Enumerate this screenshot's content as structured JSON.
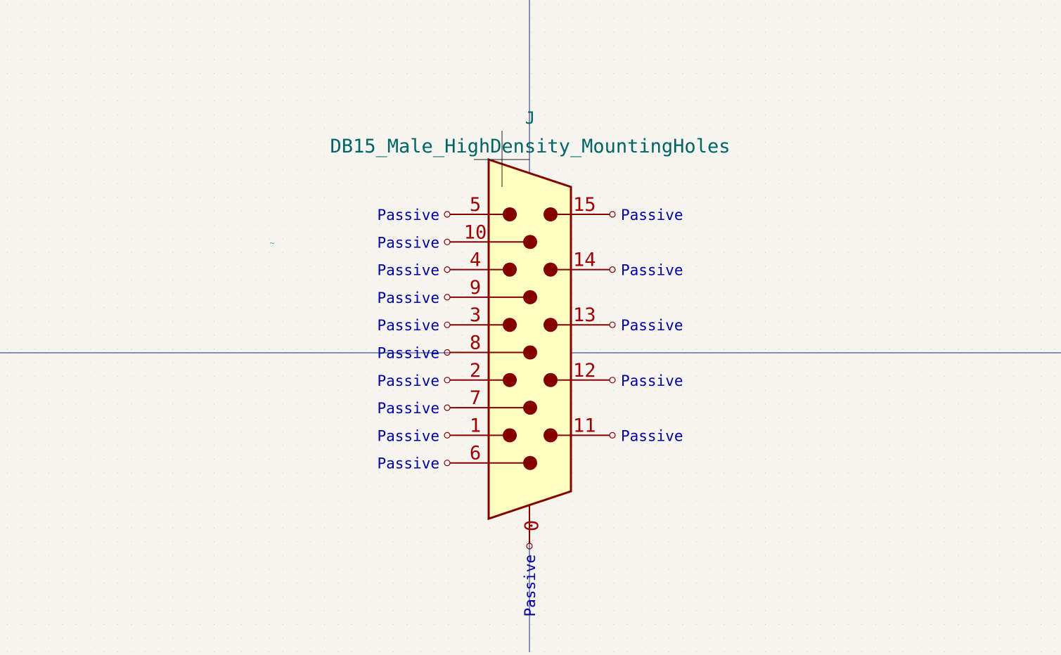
{
  "symbol": {
    "reference": "J",
    "value": "DB15_Male_HighDensity_MountingHoles"
  },
  "pin_type_label": "Passive",
  "colors": {
    "background": "#f5f4ef",
    "grid_dot": "#c9c9c2",
    "crosshair": "#1a2a8a",
    "body_outline": "#840000",
    "body_fill": "#ffffc2",
    "pin_line": "#840000",
    "pin_number": "#a00000",
    "pin_type": "#0000a0",
    "field_text": "#006464"
  },
  "pins": {
    "left": [
      {
        "number": "5",
        "type": "Passive"
      },
      {
        "number": "10",
        "type": "Passive"
      },
      {
        "number": "4",
        "type": "Passive"
      },
      {
        "number": "9",
        "type": "Passive"
      },
      {
        "number": "3",
        "type": "Passive"
      },
      {
        "number": "8",
        "type": "Passive"
      },
      {
        "number": "2",
        "type": "Passive"
      },
      {
        "number": "7",
        "type": "Passive"
      },
      {
        "number": "1",
        "type": "Passive"
      },
      {
        "number": "6",
        "type": "Passive"
      }
    ],
    "right": [
      {
        "number": "15",
        "type": "Passive"
      },
      {
        "number": "14",
        "type": "Passive"
      },
      {
        "number": "13",
        "type": "Passive"
      },
      {
        "number": "12",
        "type": "Passive"
      },
      {
        "number": "11",
        "type": "Passive"
      }
    ],
    "bottom": [
      {
        "number": "0",
        "type": "Passive"
      }
    ]
  }
}
